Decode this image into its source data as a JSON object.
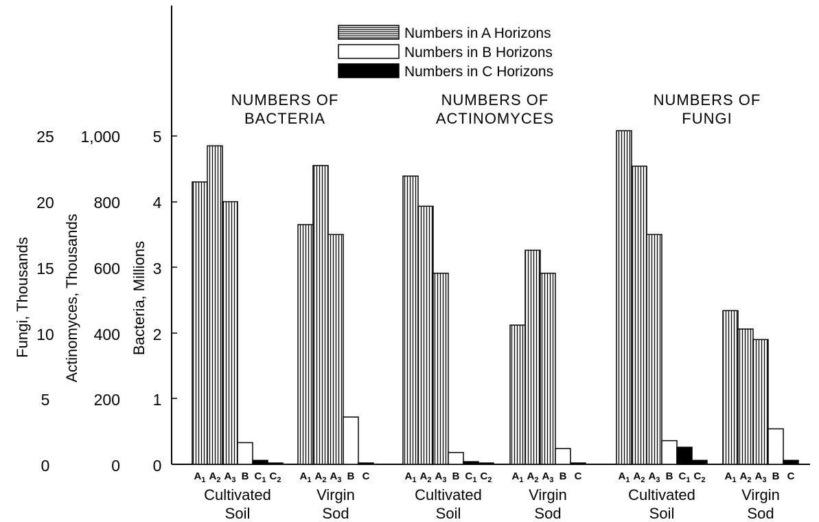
{
  "legend": [
    {
      "label": "Numbers in A Horizons",
      "pattern": "striped"
    },
    {
      "label": "Numbers in B Horizons",
      "pattern": "white"
    },
    {
      "label": "Numbers in C Horizons",
      "pattern": "black"
    }
  ],
  "axes": {
    "fungi": {
      "title": "Fungi, Thousands",
      "ticks": [
        "0",
        "5",
        "10",
        "15",
        "20",
        "25"
      ]
    },
    "actinomyces": {
      "title": "Actinomyces, Thousands",
      "ticks": [
        "0",
        "200",
        "400",
        "600",
        "800",
        "1,000"
      ]
    },
    "bacteria": {
      "title": "Bacteria, Millions",
      "ticks": [
        "0",
        "1",
        "2",
        "3",
        "4",
        "5"
      ]
    }
  },
  "colors": {
    "ink": "#000000",
    "paper": "#ffffff"
  },
  "chart_data": {
    "type": "bar",
    "ylim_bacteria_millions": [
      0,
      5
    ],
    "ylim_actinomyces_thousands": [
      0,
      1000
    ],
    "ylim_fungi_thousands": [
      0,
      25
    ],
    "grid": false,
    "legend_position": "top-center",
    "panels": [
      {
        "title": [
          "NUMBERS OF",
          "BACTERIA"
        ],
        "units": "Bacteria, Millions",
        "groups": [
          {
            "label": [
              "Cultivated",
              "Soil"
            ],
            "bars": [
              {
                "label": "A1",
                "horizon": "A",
                "value": 4.3
              },
              {
                "label": "A2",
                "horizon": "A",
                "value": 4.85
              },
              {
                "label": "A3",
                "horizon": "A",
                "value": 4.0
              },
              {
                "label": "B",
                "horizon": "B",
                "value": 0.33
              },
              {
                "label": "C1",
                "horizon": "C",
                "value": 0.06
              },
              {
                "label": "C2",
                "horizon": "C",
                "value": 0.02
              }
            ]
          },
          {
            "label": [
              "Virgin",
              "Sod"
            ],
            "bars": [
              {
                "label": "A1",
                "horizon": "A",
                "value": 3.65
              },
              {
                "label": "A2",
                "horizon": "A",
                "value": 4.55
              },
              {
                "label": "A3",
                "horizon": "A",
                "value": 3.5
              },
              {
                "label": "B",
                "horizon": "B",
                "value": 0.72
              },
              {
                "label": "C",
                "horizon": "C",
                "value": 0.02
              }
            ]
          }
        ]
      },
      {
        "title": [
          "NUMBERS OF",
          "ACTINOMYCES"
        ],
        "units": "Actinomyces, Thousands",
        "groups": [
          {
            "label": [
              "Cultivated",
              "Soil"
            ],
            "bars": [
              {
                "label": "A1",
                "horizon": "A",
                "value": 878
              },
              {
                "label": "A2",
                "horizon": "A",
                "value": 786
              },
              {
                "label": "A3",
                "horizon": "A",
                "value": 582
              },
              {
                "label": "B",
                "horizon": "B",
                "value": 36
              },
              {
                "label": "C1",
                "horizon": "C",
                "value": 8
              },
              {
                "label": "C2",
                "horizon": "C",
                "value": 4
              }
            ]
          },
          {
            "label": [
              "Virgin",
              "Sod"
            ],
            "bars": [
              {
                "label": "A1",
                "horizon": "A",
                "value": 424
              },
              {
                "label": "A2",
                "horizon": "A",
                "value": 652
              },
              {
                "label": "A3",
                "horizon": "A",
                "value": 582
              },
              {
                "label": "B",
                "horizon": "B",
                "value": 48
              },
              {
                "label": "C",
                "horizon": "C",
                "value": 4
              }
            ]
          }
        ]
      },
      {
        "title": [
          "NUMBERS OF",
          "FUNGI"
        ],
        "units": "Fungi, Thousands",
        "groups": [
          {
            "label": [
              "Cultivated",
              "Soil"
            ],
            "bars": [
              {
                "label": "A1",
                "horizon": "A",
                "value": 25.4
              },
              {
                "label": "A2",
                "horizon": "A",
                "value": 22.7
              },
              {
                "label": "A3",
                "horizon": "A",
                "value": 17.5
              },
              {
                "label": "B",
                "horizon": "B",
                "value": 1.8
              },
              {
                "label": "C1",
                "horizon": "C",
                "value": 1.3
              },
              {
                "label": "C2",
                "horizon": "C",
                "value": 0.3
              }
            ]
          },
          {
            "label": [
              "Virgin",
              "Sod"
            ],
            "bars": [
              {
                "label": "A1",
                "horizon": "A",
                "value": 11.7
              },
              {
                "label": "A2",
                "horizon": "A",
                "value": 10.3
              },
              {
                "label": "A3",
                "horizon": "A",
                "value": 9.5
              },
              {
                "label": "B",
                "horizon": "B",
                "value": 2.7
              },
              {
                "label": "C",
                "horizon": "C",
                "value": 0.3
              }
            ]
          }
        ]
      }
    ]
  }
}
